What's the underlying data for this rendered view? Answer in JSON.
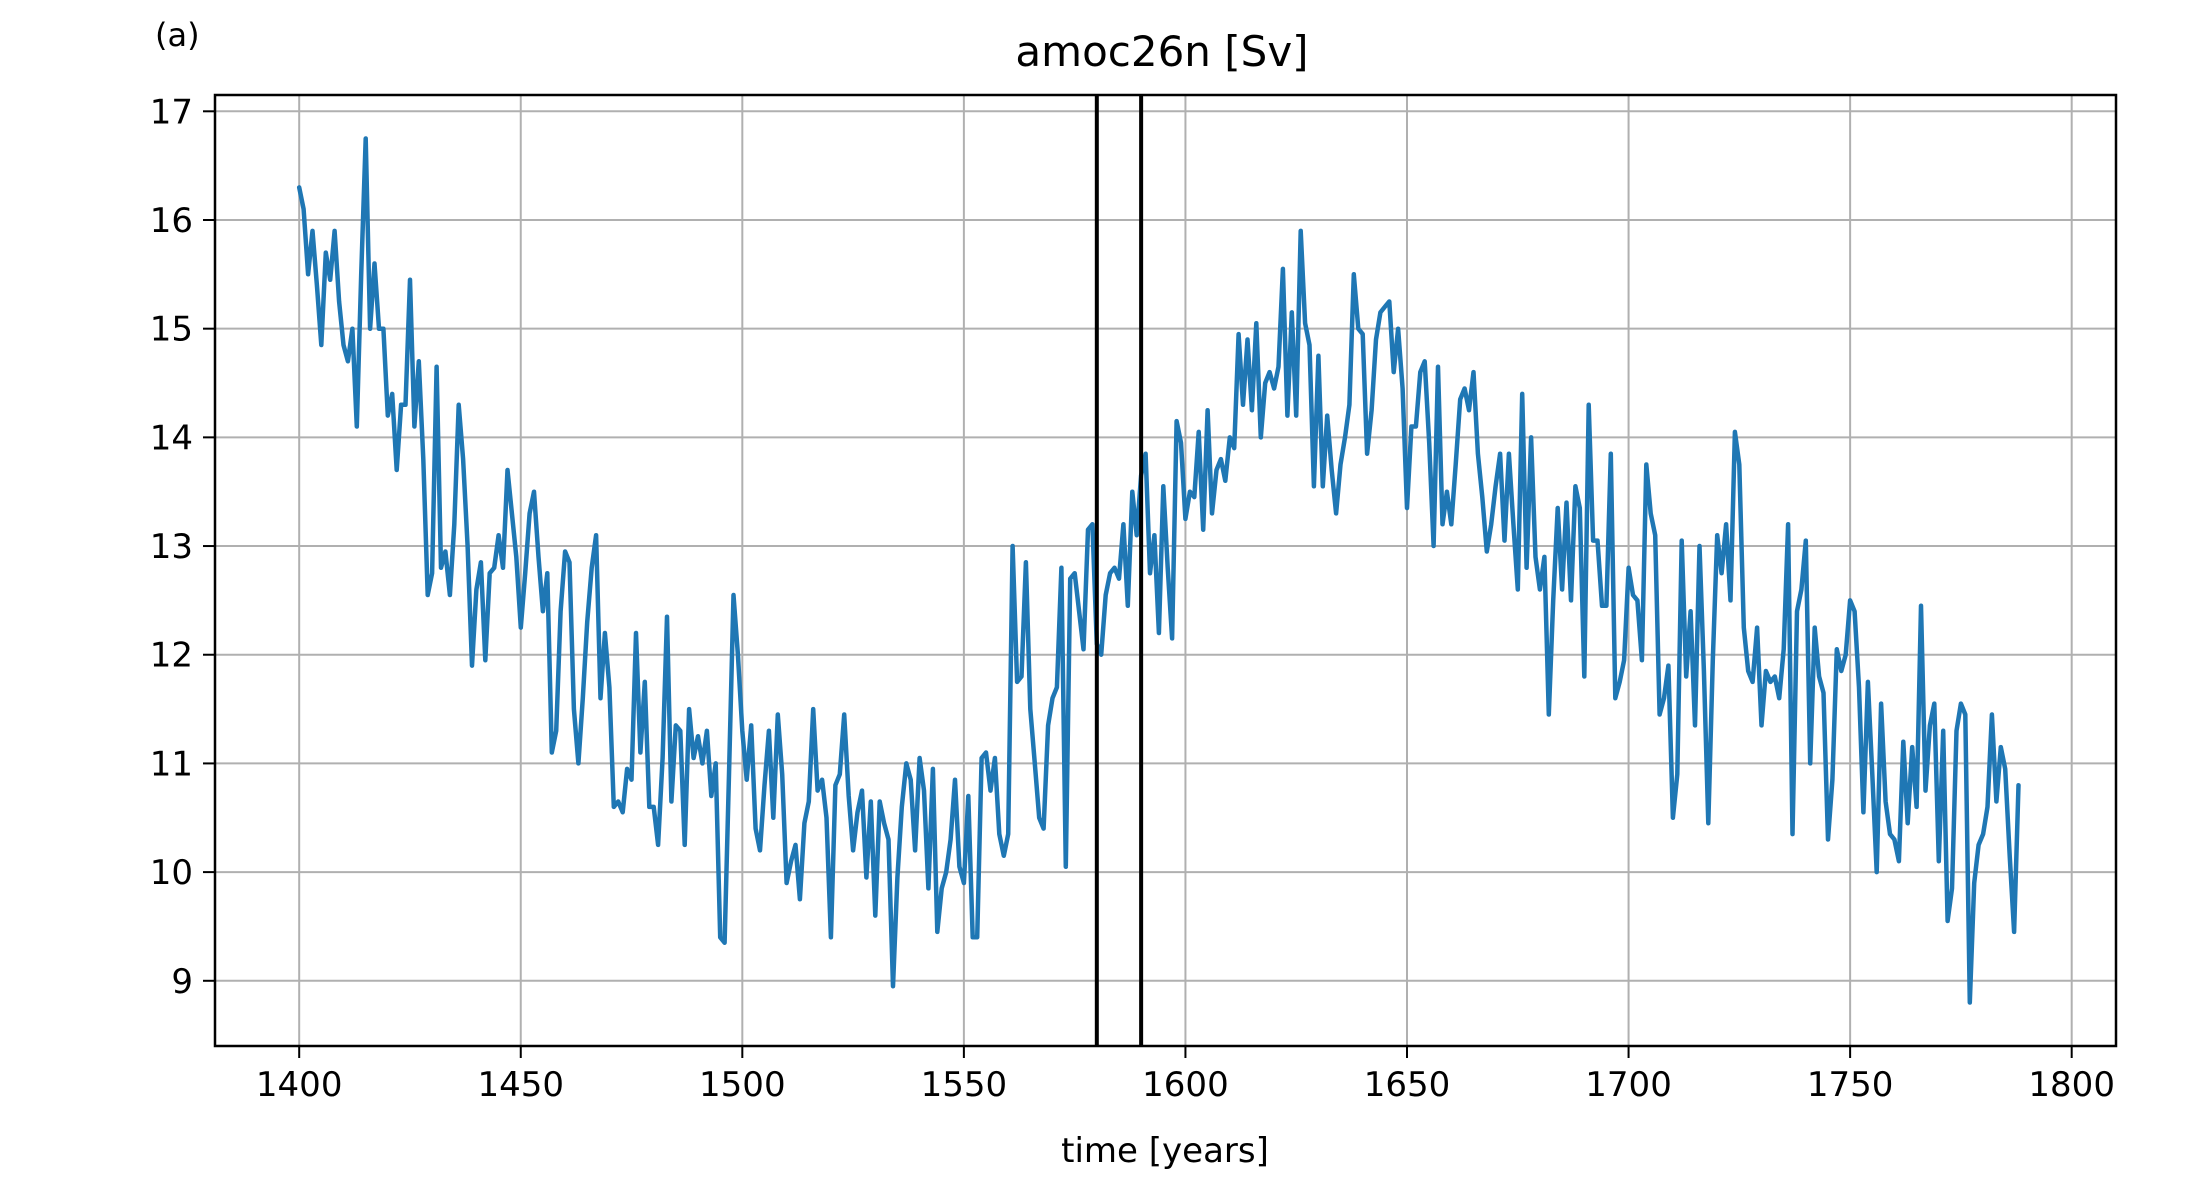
{
  "chart_data": {
    "type": "line",
    "panel_label": "(a)",
    "title": "amoc26n [Sv]",
    "xlabel": "time [years]",
    "ylabel": "",
    "xlim": [
      1381,
      1810
    ],
    "ylim": [
      8.4,
      17.15
    ],
    "xticks": [
      1400,
      1450,
      1500,
      1550,
      1600,
      1650,
      1700,
      1750,
      1800
    ],
    "yticks": [
      9,
      10,
      11,
      12,
      13,
      14,
      15,
      16,
      17
    ],
    "grid": true,
    "line_color": "#1f77b4",
    "vline_color": "#000000",
    "vlines": [
      1580,
      1590
    ],
    "series": [
      {
        "x_start": 1400,
        "x_step": 1,
        "values": [
          16.3,
          16.1,
          15.5,
          15.9,
          15.4,
          14.85,
          15.7,
          15.45,
          15.9,
          15.25,
          14.85,
          14.7,
          15.0,
          14.1,
          15.5,
          16.75,
          15.0,
          15.6,
          15.0,
          15.0,
          14.2,
          14.4,
          13.7,
          14.3,
          14.3,
          15.45,
          14.1,
          14.7,
          13.8,
          12.55,
          12.75,
          14.65,
          12.8,
          12.95,
          12.55,
          13.2,
          14.3,
          13.8,
          13.0,
          11.9,
          12.6,
          12.85,
          11.95,
          12.75,
          12.8,
          13.1,
          12.8,
          13.7,
          13.3,
          12.9,
          12.25,
          12.75,
          13.3,
          13.5,
          12.9,
          12.4,
          12.75,
          11.1,
          11.3,
          12.4,
          12.95,
          12.85,
          11.5,
          11.0,
          11.6,
          12.3,
          12.8,
          13.1,
          11.6,
          12.2,
          11.7,
          10.6,
          10.65,
          10.55,
          10.95,
          10.85,
          12.2,
          11.1,
          11.75,
          10.6,
          10.6,
          10.25,
          11.05,
          12.35,
          10.65,
          11.35,
          11.3,
          10.25,
          11.5,
          11.05,
          11.25,
          11.0,
          11.3,
          10.7,
          11.0,
          9.4,
          9.35,
          10.9,
          12.55,
          12.0,
          11.3,
          10.85,
          11.35,
          10.4,
          10.2,
          10.8,
          11.3,
          10.5,
          11.45,
          10.9,
          9.9,
          10.1,
          10.25,
          9.75,
          10.45,
          10.65,
          11.5,
          10.75,
          10.85,
          10.5,
          9.4,
          10.8,
          10.9,
          11.45,
          10.7,
          10.2,
          10.55,
          10.75,
          9.95,
          10.65,
          9.6,
          10.65,
          10.45,
          10.3,
          8.95,
          9.95,
          10.6,
          11.0,
          10.85,
          10.2,
          11.05,
          10.75,
          9.85,
          10.95,
          9.45,
          9.85,
          10.0,
          10.3,
          10.85,
          10.05,
          9.9,
          10.7,
          9.4,
          9.4,
          11.05,
          11.1,
          10.75,
          11.05,
          10.35,
          10.15,
          10.35,
          13.0,
          11.75,
          11.8,
          12.85,
          11.5,
          11.0,
          10.5,
          10.4,
          11.35,
          11.6,
          11.7,
          12.8,
          10.05,
          12.7,
          12.75,
          12.4,
          12.05,
          13.15,
          13.2,
          12.1,
          12.0,
          12.55,
          12.75,
          12.8,
          12.7,
          13.2,
          12.45,
          13.5,
          13.1,
          13.65,
          13.85,
          12.75,
          13.1,
          12.2,
          13.55,
          12.8,
          12.15,
          14.15,
          13.95,
          13.25,
          13.5,
          13.45,
          14.05,
          13.15,
          14.25,
          13.3,
          13.7,
          13.8,
          13.6,
          14.0,
          13.9,
          14.95,
          14.3,
          14.9,
          14.25,
          15.05,
          14.0,
          14.5,
          14.6,
          14.45,
          14.65,
          15.55,
          14.2,
          15.15,
          14.2,
          15.9,
          15.05,
          14.85,
          13.55,
          14.75,
          13.55,
          14.2,
          13.7,
          13.3,
          13.75,
          14.0,
          14.3,
          15.5,
          15.0,
          14.95,
          13.85,
          14.25,
          14.9,
          15.15,
          15.2,
          15.25,
          14.6,
          15.0,
          14.45,
          13.35,
          14.1,
          14.1,
          14.6,
          14.7,
          13.95,
          13.0,
          14.65,
          13.2,
          13.5,
          13.2,
          13.75,
          14.35,
          14.45,
          14.25,
          14.6,
          13.85,
          13.45,
          12.95,
          13.2,
          13.55,
          13.85,
          13.05,
          13.85,
          13.2,
          12.6,
          14.4,
          12.8,
          14.0,
          12.9,
          12.6,
          12.9,
          11.45,
          12.5,
          13.35,
          12.6,
          13.4,
          12.5,
          13.55,
          13.35,
          11.8,
          14.3,
          13.05,
          13.05,
          12.45,
          12.45,
          13.85,
          11.6,
          11.75,
          11.95,
          12.8,
          12.55,
          12.5,
          11.95,
          13.75,
          13.3,
          13.1,
          11.45,
          11.6,
          11.9,
          10.5,
          10.9,
          13.05,
          11.8,
          12.4,
          11.35,
          13.0,
          11.85,
          10.45,
          11.95,
          13.1,
          12.75,
          13.2,
          12.5,
          14.05,
          13.75,
          12.25,
          11.85,
          11.75,
          12.25,
          11.35,
          11.85,
          11.75,
          11.8,
          11.6,
          12.05,
          13.2,
          10.35,
          12.4,
          12.6,
          13.05,
          11.0,
          12.25,
          11.8,
          11.65,
          10.3,
          10.85,
          12.05,
          11.85,
          12.0,
          12.5,
          12.4,
          11.7,
          10.55,
          11.75,
          10.9,
          10.0,
          11.55,
          10.65,
          10.35,
          10.3,
          10.1,
          11.2,
          10.45,
          11.15,
          10.6,
          12.45,
          10.75,
          11.35,
          11.55,
          10.1,
          11.3,
          9.55,
          9.85,
          11.3,
          11.55,
          11.45,
          8.8,
          9.9,
          10.25,
          10.35,
          10.6,
          11.45,
          10.65,
          11.15,
          10.95,
          10.15,
          9.45,
          10.8
        ]
      }
    ]
  }
}
